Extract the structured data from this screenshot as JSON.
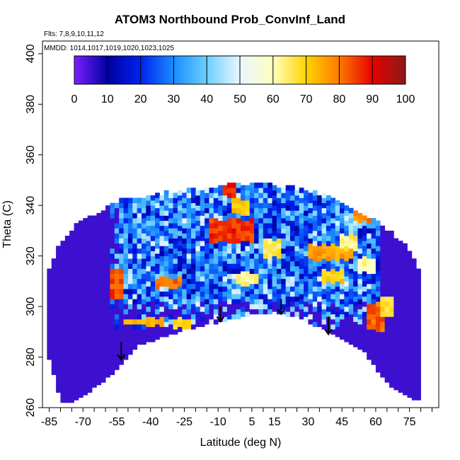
{
  "chart_data": {
    "type": "heatmap",
    "title": "ATOM3 Northbound Prob_ConvInf_Land",
    "subtitle_flights": "Flts: 7,8,9,10,11,12",
    "subtitle_dates": "MMDD: 1014,1017,1019,1020,1023,1025",
    "xlabel": "Latitude (deg N)",
    "ylabel": "Theta (C)",
    "xlim": [
      -88,
      88
    ],
    "ylim": [
      260,
      405
    ],
    "x_ticks": [
      -85,
      -70,
      -55,
      -40,
      -25,
      -10,
      5,
      15,
      30,
      45,
      60,
      75
    ],
    "x_tick_labels": [
      "-85",
      "-70",
      "-55",
      "-40",
      "-25",
      "-10",
      "5",
      "15",
      "30",
      "45",
      "60",
      "75"
    ],
    "y_ticks": [
      260,
      280,
      300,
      320,
      340,
      360,
      380,
      400
    ],
    "y_tick_labels": [
      "260",
      "280",
      "300",
      "320",
      "340",
      "360",
      "380",
      "400"
    ],
    "colorbar": {
      "range": [
        0,
        100
      ],
      "ticks": [
        0,
        10,
        20,
        30,
        40,
        50,
        60,
        70,
        80,
        90,
        100
      ],
      "tick_labels": [
        "0",
        "10",
        "20",
        "30",
        "40",
        "50",
        "60",
        "70",
        "80",
        "90",
        "100"
      ]
    },
    "background_value": 5,
    "sampled_envelope": [
      {
        "x": -86,
        "ymin": 283,
        "ymax": 313
      },
      {
        "x": -80,
        "ymin": 263,
        "ymax": 324
      },
      {
        "x": -75,
        "ymin": 262,
        "ymax": 330
      },
      {
        "x": -65,
        "ymin": 268,
        "ymax": 336
      },
      {
        "x": -55,
        "ymin": 275,
        "ymax": 341
      },
      {
        "x": -45,
        "ymin": 285,
        "ymax": 342
      },
      {
        "x": -35,
        "ymin": 288,
        "ymax": 344
      },
      {
        "x": -25,
        "ymin": 291,
        "ymax": 345
      },
      {
        "x": -15,
        "ymin": 293,
        "ymax": 346
      },
      {
        "x": -5,
        "ymin": 295,
        "ymax": 348
      },
      {
        "x": 5,
        "ymin": 297,
        "ymax": 348
      },
      {
        "x": 15,
        "ymin": 298,
        "ymax": 347
      },
      {
        "x": 25,
        "ymin": 296,
        "ymax": 346
      },
      {
        "x": 35,
        "ymin": 292,
        "ymax": 344
      },
      {
        "x": 45,
        "ymin": 287,
        "ymax": 340
      },
      {
        "x": 55,
        "ymin": 282,
        "ymax": 336
      },
      {
        "x": 65,
        "ymin": 270,
        "ymax": 330
      },
      {
        "x": 75,
        "ymin": 264,
        "ymax": 322
      },
      {
        "x": 80,
        "ymin": 263,
        "ymax": 312
      }
    ],
    "high_prob_regions": [
      {
        "xmin": -38,
        "xmax": -28,
        "ymin": 307,
        "ymax": 310,
        "value": 85
      },
      {
        "xmin": -58,
        "xmax": -54,
        "ymin": 303,
        "ymax": 313,
        "value": 88
      },
      {
        "xmin": -52,
        "xmax": -35,
        "ymin": 292,
        "ymax": 294,
        "value": 78
      },
      {
        "xmin": -30,
        "xmax": -24,
        "ymin": 291,
        "ymax": 294,
        "value": 72
      },
      {
        "xmin": -14,
        "xmax": 4,
        "ymin": 325,
        "ymax": 333,
        "value": 90
      },
      {
        "xmin": -5,
        "xmax": 2,
        "ymin": 336,
        "ymax": 341,
        "value": 75
      },
      {
        "xmin": -8,
        "xmax": -4,
        "ymin": 343,
        "ymax": 348,
        "value": 92
      },
      {
        "xmin": 10,
        "xmax": 16,
        "ymin": 319,
        "ymax": 325,
        "value": 70
      },
      {
        "xmin": 30,
        "xmax": 48,
        "ymin": 318,
        "ymax": 323,
        "value": 80
      },
      {
        "xmin": 36,
        "xmax": 44,
        "ymin": 309,
        "ymax": 313,
        "value": 74
      },
      {
        "xmin": 44,
        "xmax": 50,
        "ymin": 322,
        "ymax": 327,
        "value": 68
      },
      {
        "xmin": 50,
        "xmax": 56,
        "ymin": 333,
        "ymax": 337,
        "value": 82
      },
      {
        "xmin": 56,
        "xmax": 62,
        "ymin": 290,
        "ymax": 300,
        "value": 86
      },
      {
        "xmin": 62,
        "xmax": 66,
        "ymin": 296,
        "ymax": 302,
        "value": 72
      },
      {
        "xmin": 52,
        "xmax": 58,
        "ymin": 313,
        "ymax": 318,
        "value": 65
      },
      {
        "xmin": -2,
        "xmax": 6,
        "ymin": 308,
        "ymax": 312,
        "value": 66
      }
    ],
    "arrows": [
      {
        "x": -53,
        "y_from": 286,
        "y_to": 279
      },
      {
        "x": -9,
        "y_from": 300,
        "y_to": 294
      },
      {
        "x": 18,
        "y_from": 303,
        "y_to": 297
      },
      {
        "x": 39,
        "y_from": 296,
        "y_to": 289
      }
    ]
  }
}
